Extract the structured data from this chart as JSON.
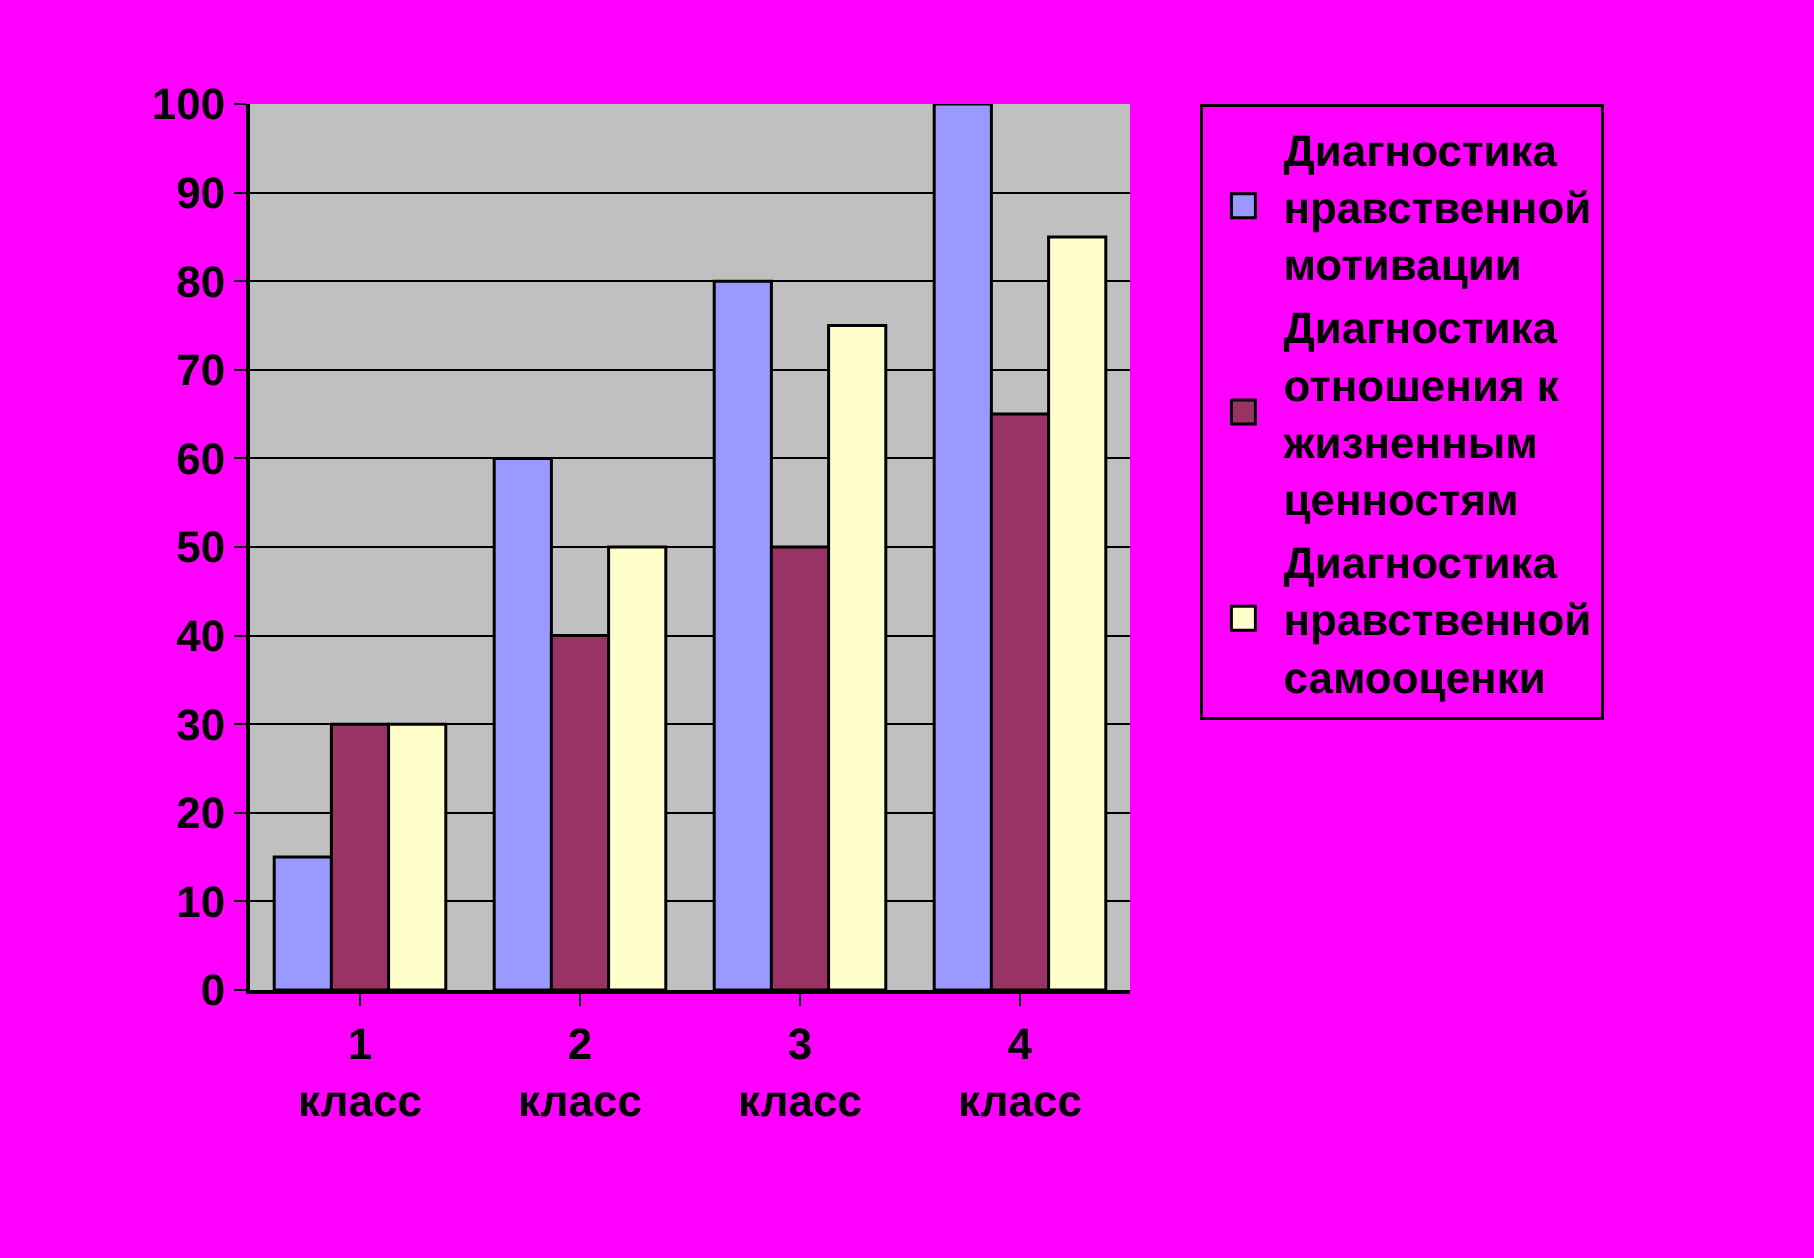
{
  "chart_data": {
    "type": "bar",
    "categories": [
      "1 класс",
      "2 класс",
      "3 класс",
      "4 класс"
    ],
    "series": [
      {
        "name": "Диагностика нравственной мотивации",
        "color": "#9999ff",
        "values": [
          15,
          60,
          80,
          100
        ]
      },
      {
        "name": "Диагностика отношения к жизненным ценностям",
        "color": "#993366",
        "values": [
          30,
          40,
          50,
          65
        ]
      },
      {
        "name": "Диагностика нравственной самооценки",
        "color": "#ffffcc",
        "values": [
          30,
          50,
          75,
          85
        ]
      }
    ],
    "ylim": [
      0,
      100
    ],
    "yticks": [
      0,
      10,
      20,
      30,
      40,
      50,
      60,
      70,
      80,
      90,
      100
    ],
    "grid": "y",
    "legend": "right"
  }
}
